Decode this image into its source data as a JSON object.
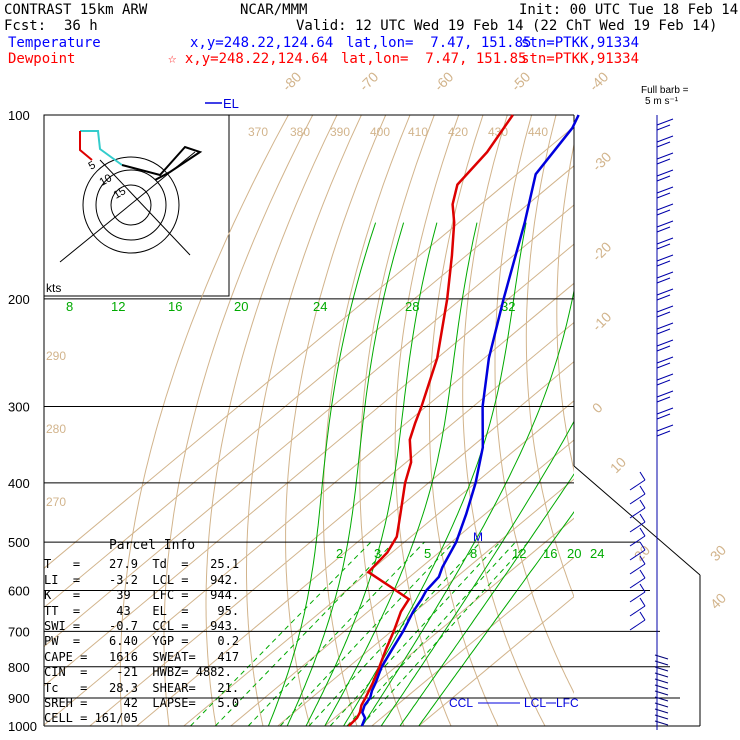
{
  "header": {
    "model": "CONTRAST 15km ARW",
    "org": "NCAR/MMM",
    "init": "Init: 00 UTC Tue 18 Feb 14",
    "fcst_label": "Fcst:",
    "fcst_value": "36 h",
    "valid": "Valid: 12 UTC Wed 19 Feb 14 (22 ChT Wed 19 Feb 14)",
    "temp_line": {
      "label": "Temperature",
      "xy": "x,y=248.22,124.64",
      "latlon": "lat,lon=  7.47, 151.85",
      "stn": "stn=PTKK,91334"
    },
    "dew_line": {
      "label": "Dewpoint",
      "xy": "☆ x,y=248.22,124.64",
      "latlon": "lat,lon=  7.47, 151.85",
      "stn": "stn=PTKK,91334"
    }
  },
  "colors": {
    "temperature": "#0000dd",
    "dewpoint": "#dd0000",
    "isotherm": "#d2b48c",
    "theta": "#d2b48c",
    "mixing": "#00aa00",
    "grid": "#000000",
    "temp_label": "#0000ff",
    "dew_label": "#ff0000"
  },
  "chart_data": {
    "type": "line",
    "pressure_labels": [
      "100",
      "200",
      "300",
      "400",
      "500",
      "600",
      "700",
      "800",
      "900",
      "1000"
    ],
    "pressure_levels": [
      100,
      200,
      300,
      400,
      500,
      600,
      700,
      800,
      900,
      1000
    ],
    "isotherm_labels": [
      "-80",
      "-70",
      "-60",
      "-50",
      "-40",
      "-30",
      "-20",
      "-10",
      "0",
      "10",
      "20",
      "30",
      "40"
    ],
    "isotherms": [
      -80,
      -70,
      -60,
      -50,
      -40,
      -30,
      -20,
      -10,
      0,
      10,
      20,
      30,
      40
    ],
    "theta_labels": [
      "370",
      "380",
      "390",
      "400",
      "410",
      "420",
      "430",
      "440",
      "290",
      "280",
      "270"
    ],
    "theta_values": [
      370,
      380,
      390,
      400,
      410,
      420,
      430,
      440,
      290,
      280,
      270
    ],
    "mixing_upper_labels": [
      "8",
      "12",
      "16",
      "20",
      "24",
      "28",
      "32"
    ],
    "mixing_lower_labels": [
      "2",
      "3",
      "5",
      "8",
      "12",
      "16",
      "20",
      "24"
    ],
    "temperature_series": {
      "name": "Temperature",
      "p": [
        1000,
        970,
        950,
        925,
        900,
        875,
        850,
        800,
        750,
        700,
        650,
        620,
        600,
        570,
        550,
        500,
        450,
        400,
        350,
        300,
        250,
        200,
        150,
        125,
        105,
        100
      ],
      "t": [
        27.9,
        26.5,
        24.5,
        23.2,
        22.5,
        21,
        19.8,
        17,
        14.8,
        12.5,
        9.6,
        8.2,
        7,
        6.2,
        4.5,
        1,
        -4,
        -10,
        -17.5,
        -28,
        -39,
        -51,
        -66,
        -76,
        -80,
        -82
      ]
    },
    "dewpoint_series": {
      "name": "Dewpoint",
      "p": [
        1000,
        970,
        950,
        925,
        900,
        850,
        800,
        750,
        700,
        650,
        620,
        590,
        560,
        520,
        490,
        450,
        400,
        370,
        340,
        320,
        300,
        250,
        200,
        170,
        150,
        140,
        130,
        115,
        100
      ],
      "td": [
        25.1,
        24.8,
        24,
        22.5,
        21.5,
        19.2,
        16.5,
        13.5,
        10.5,
        7,
        5.5,
        -2,
        -10,
        -11,
        -13,
        -18,
        -25,
        -29,
        -35,
        -38,
        -41,
        -50,
        -63,
        -73,
        -81,
        -86,
        -90,
        -92,
        -96
      ]
    },
    "el_label": "EL",
    "parcel_labels": {
      "ccl": "CCL",
      "lcl": "LCL",
      "lfc": "LFC",
      "m": "M"
    },
    "hodograph": {
      "label": "kts",
      "rings": [
        "5",
        "10",
        "15"
      ]
    },
    "wind_legend": {
      "line1": "Full barb =",
      "line2": "5 m s⁻¹"
    }
  },
  "parcel_info": {
    "title": "Parcel Info",
    "rows": [
      "T   =    27.9  Td  =   25.1",
      "LI  =    -3.2  LCL =   942.",
      "K   =     39   LFC =   944.",
      "TT  =     43   EL  =    95.",
      "SWI =    -0.7  CCL =   943.",
      "PW  =    6.40  YGP =    0.2",
      "CAPE =   1616  SWEAT=   417",
      "CIN  =    -21  HWBZ= 4882.",
      "Tc   =   28.3  SHEAR=   21.",
      "SREH =     42  LAPSE=   5.0",
      "CELL = 161/05"
    ]
  }
}
